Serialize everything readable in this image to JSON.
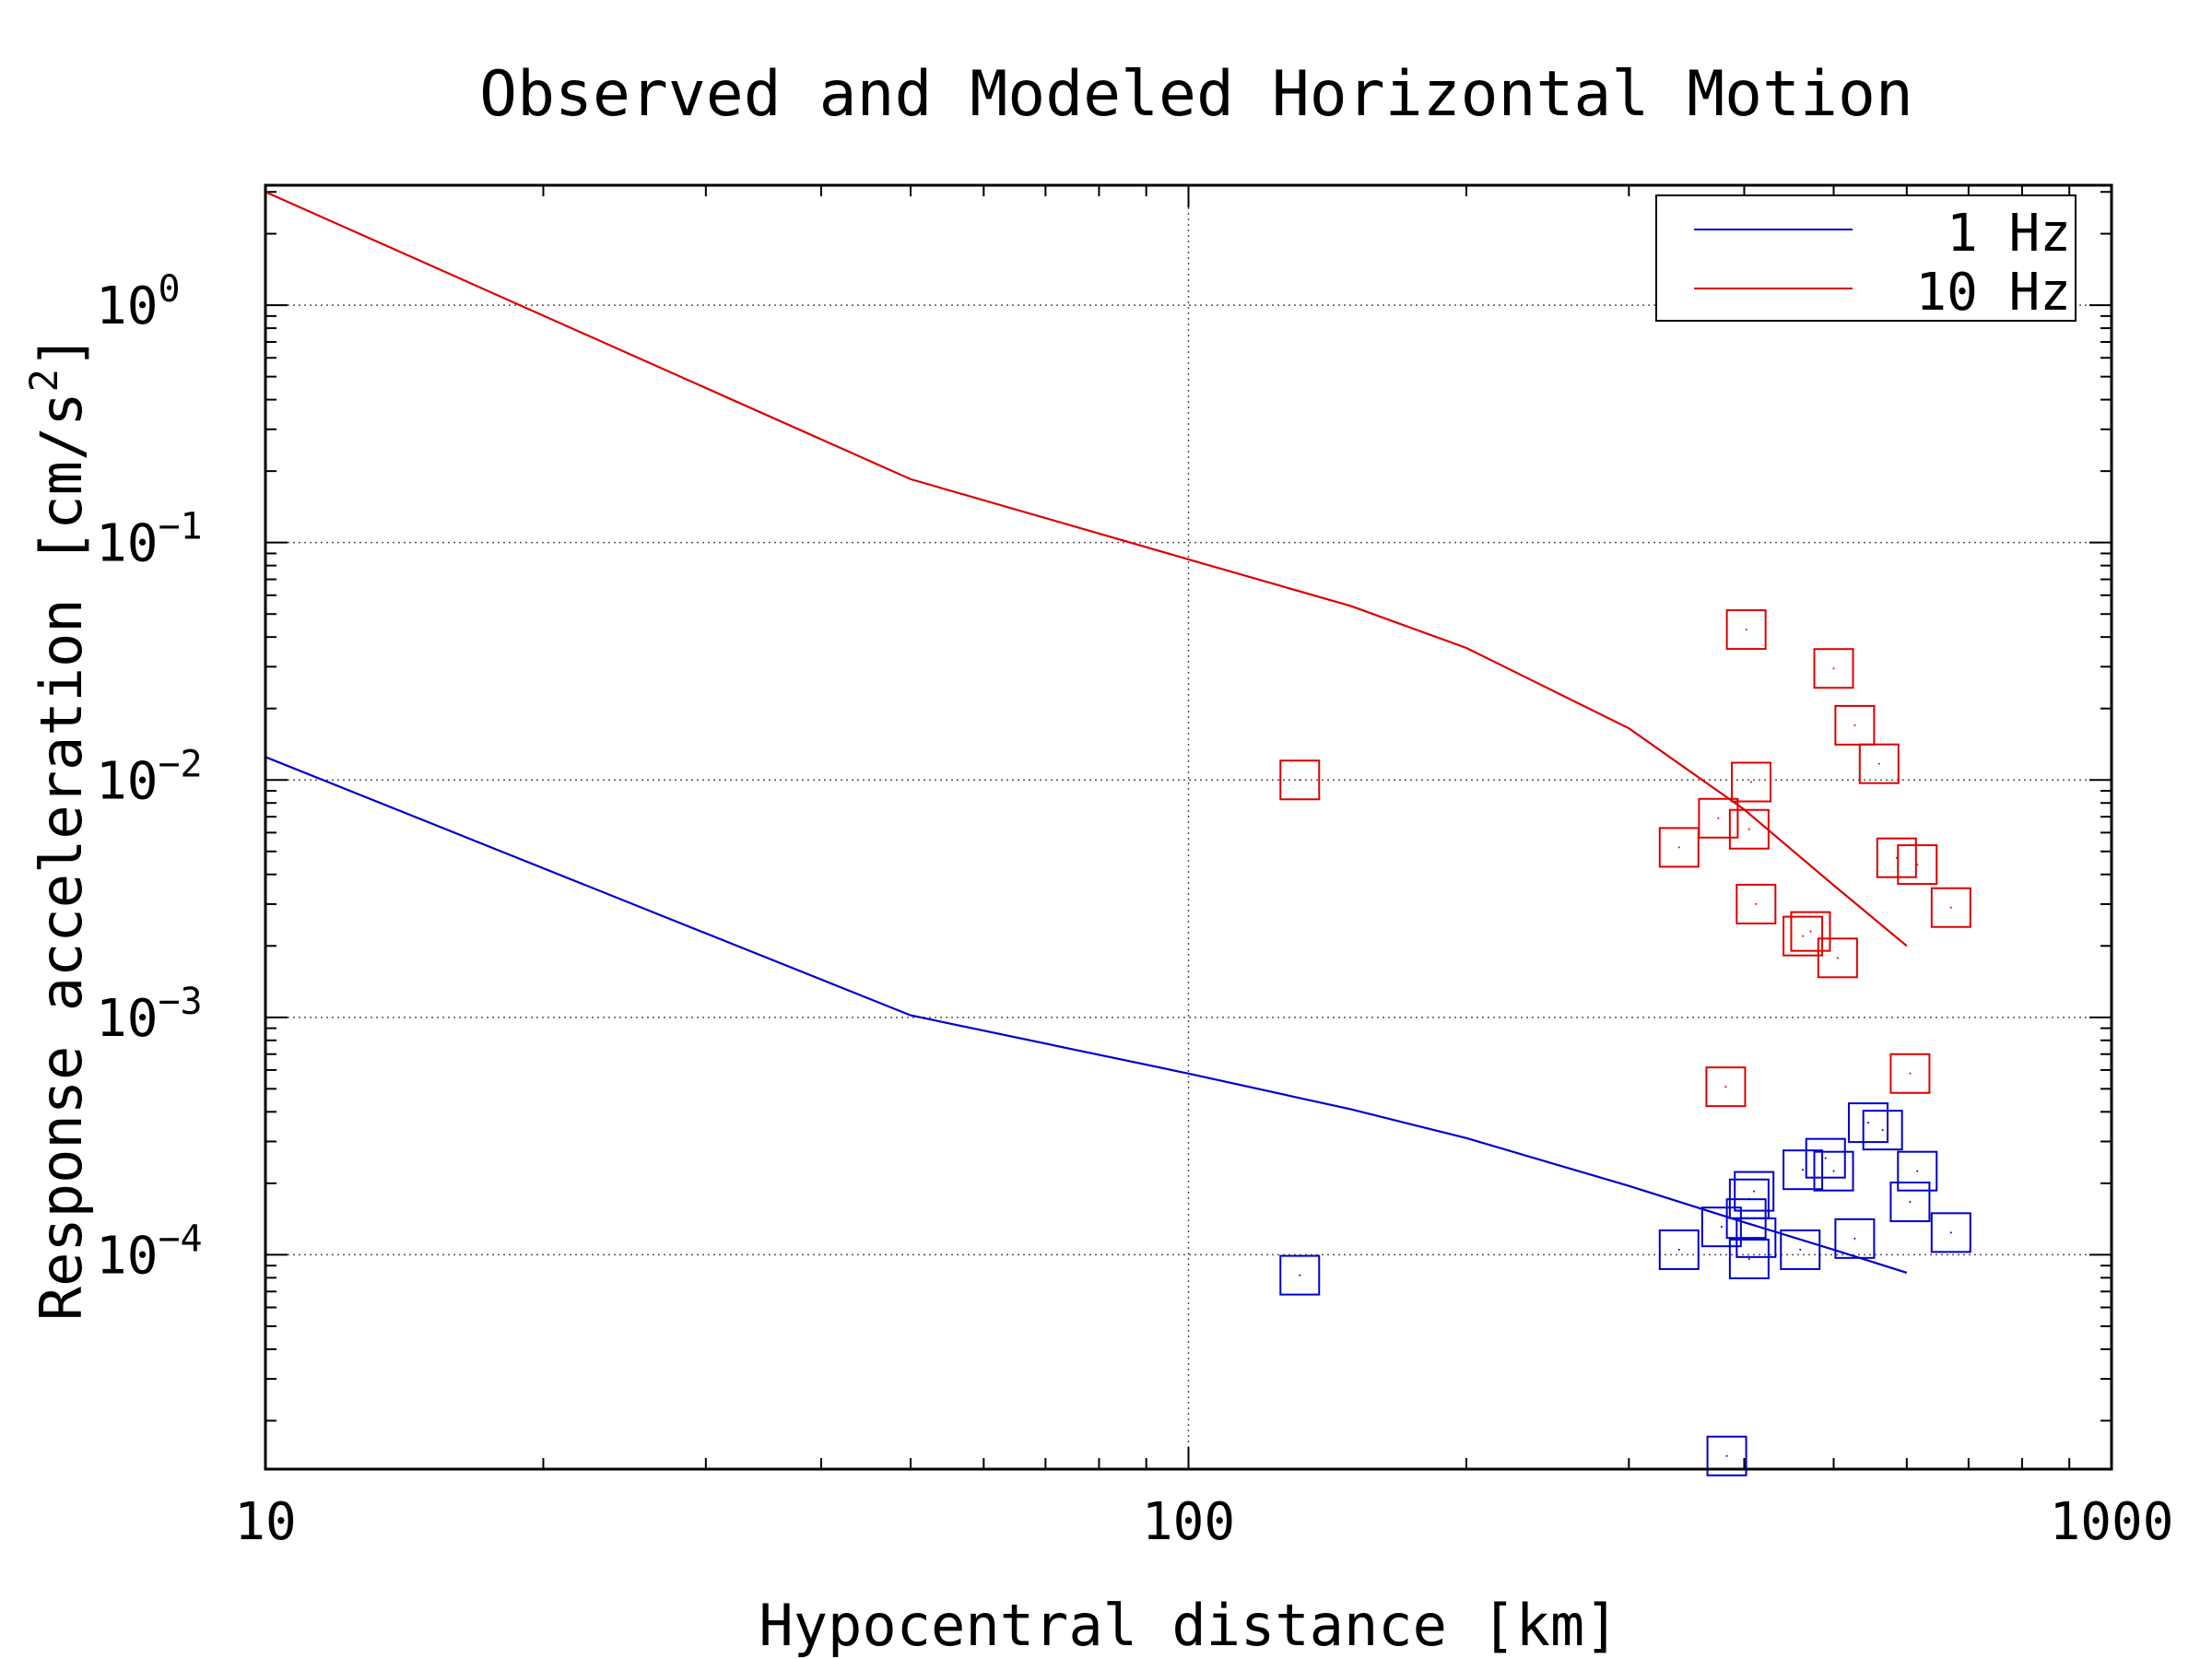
{
  "chart_data": {
    "type": "scatter",
    "title": "Observed and Modeled Horizontal Motion",
    "xlabel": "Hypocentral distance [km]",
    "ylabel": "Response acceleration [cm/s",
    "ylabel_sup": "2",
    "ylabel_end": "]",
    "x_scale": "log",
    "y_scale": "log",
    "xlim": [
      10,
      1000
    ],
    "ylim": [
      1.25e-05,
      3.2
    ],
    "grid": true,
    "legend_position": "top-right",
    "x_ticks": [
      {
        "value": 10,
        "label": "10"
      },
      {
        "value": 100,
        "label": "100"
      },
      {
        "value": 1000,
        "label": "1000"
      }
    ],
    "y_ticks": [
      {
        "value": 1,
        "base": "10",
        "exp": "0"
      },
      {
        "value": 0.1,
        "base": "10",
        "exp": "−1"
      },
      {
        "value": 0.01,
        "base": "10",
        "exp": "−2"
      },
      {
        "value": 0.001,
        "base": "10",
        "exp": "−3"
      },
      {
        "value": 0.0001,
        "base": "10",
        "exp": "−4"
      }
    ],
    "series": [
      {
        "name": "1 Hz",
        "color": "#0000cc",
        "model_line": {
          "x": [
            10,
            50,
            100,
            150,
            200,
            300,
            400,
            500,
            600
          ],
          "y": [
            0.0125,
            0.00102,
            0.00058,
            0.00041,
            0.00031,
            0.000195,
            0.000137,
            0.000105,
            8.4e-05
          ]
        },
        "observed": {
          "x": [
            132,
            340,
            378,
            383,
            402,
            405,
            405,
            410,
            412,
            460,
            463,
            490,
            500,
            527,
            545,
            565,
            605,
            616,
            670
          ],
          "y": [
            8.2e-05,
            0.000105,
            0.000131,
            1.42e-05,
            0.000142,
            0.000172,
            9.6e-05,
            0.000185,
            0.000118,
            0.000105,
            0.000228,
            0.000255,
            0.000225,
            0.000117,
            0.00036,
            0.000335,
            0.000167,
            0.000225,
            0.000124
          ]
        }
      },
      {
        "name": "10 Hz",
        "color": "#dd0000",
        "model_line": {
          "x": [
            10,
            50,
            100,
            150,
            200,
            300,
            400,
            500,
            600
          ],
          "y": [
            3.0,
            0.185,
            0.085,
            0.054,
            0.036,
            0.0165,
            0.0075,
            0.0036,
            0.002
          ]
        },
        "observed": {
          "x": [
            132,
            340,
            375,
            382,
            402,
            405,
            407,
            412,
            463,
            472,
            500,
            505,
            527,
            560,
            585,
            605,
            616,
            670
          ],
          "y": [
            0.01,
            0.0052,
            0.0069,
            0.00051,
            0.043,
            0.0062,
            0.0098,
            0.003,
            0.0022,
            0.0023,
            0.0295,
            0.00178,
            0.017,
            0.0117,
            0.0047,
            0.00058,
            0.0044,
            0.0029
          ]
        }
      }
    ]
  }
}
